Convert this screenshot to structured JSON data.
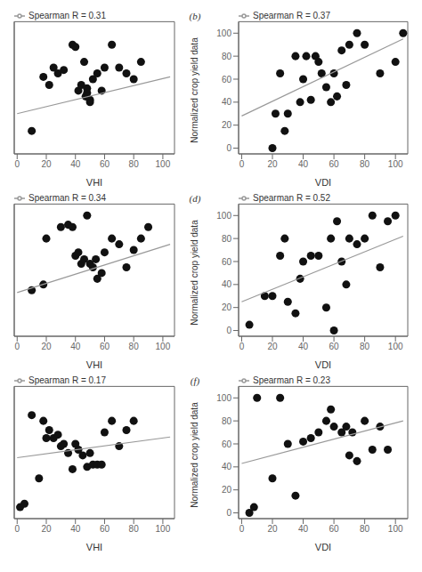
{
  "chart_data": [
    {
      "type": "scatter",
      "xlabel": "VHI",
      "xlim": [
        -2,
        108
      ],
      "ylim": [
        -5,
        110
      ],
      "xticks": [
        0,
        20,
        40,
        60,
        80,
        100
      ],
      "yticks": [
        0,
        20,
        40,
        60,
        80,
        100
      ],
      "grid": false,
      "legend": "upper left",
      "tick_labels": "x",
      "series": [
        {
          "type": "scatter",
          "color": "#111111",
          "marker": "circle",
          "x": [
            10,
            18,
            22,
            25,
            28,
            32,
            38,
            40,
            42,
            44,
            46,
            47,
            48,
            48,
            50,
            50,
            52,
            55,
            58,
            60,
            65,
            70,
            75,
            80,
            85
          ],
          "values": [
            15,
            62,
            55,
            70,
            65,
            68,
            90,
            88,
            50,
            55,
            75,
            45,
            48,
            52,
            40,
            42,
            60,
            65,
            50,
            70,
            90,
            70,
            65,
            60,
            75
          ]
        },
        {
          "name": "Spearman R = 0.31",
          "type": "line",
          "color": "#999999",
          "x": [
            0,
            105
          ],
          "values": [
            30,
            62
          ]
        }
      ]
    },
    {
      "type": "scatter",
      "xlabel": "VDI",
      "ylabel": "Normalized crop yield data",
      "annotations": [
        "(b)"
      ],
      "xlim": [
        -2,
        108
      ],
      "ylim": [
        -5,
        110
      ],
      "xticks": [
        0,
        20,
        40,
        60,
        80,
        100
      ],
      "yticks": [
        0,
        20,
        40,
        60,
        80,
        100
      ],
      "grid": false,
      "legend": "upper left",
      "series": [
        {
          "type": "scatter",
          "color": "#111111",
          "marker": "circle",
          "x": [
            20,
            22,
            25,
            28,
            30,
            35,
            38,
            40,
            42,
            45,
            48,
            50,
            52,
            55,
            58,
            60,
            62,
            65,
            68,
            70,
            75,
            80,
            90,
            100,
            105
          ],
          "values": [
            0,
            30,
            65,
            15,
            30,
            80,
            40,
            60,
            80,
            42,
            80,
            75,
            65,
            53,
            40,
            65,
            45,
            85,
            55,
            90,
            100,
            90,
            65,
            75,
            100
          ]
        },
        {
          "name": "Spearman R = 0.37",
          "type": "line",
          "color": "#999999",
          "x": [
            0,
            105
          ],
          "values": [
            28,
            95
          ]
        }
      ]
    },
    {
      "type": "scatter",
      "xlabel": "VHI",
      "xlim": [
        -2,
        108
      ],
      "ylim": [
        -5,
        110
      ],
      "xticks": [
        0,
        20,
        40,
        60,
        80,
        100
      ],
      "yticks": [
        0,
        20,
        40,
        60,
        80,
        100
      ],
      "grid": false,
      "legend": "upper left",
      "tick_labels": "x",
      "series": [
        {
          "type": "scatter",
          "color": "#111111",
          "marker": "circle",
          "x": [
            10,
            18,
            20,
            30,
            35,
            38,
            40,
            42,
            44,
            46,
            48,
            50,
            52,
            54,
            55,
            58,
            60,
            65,
            70,
            75,
            80,
            85,
            90
          ],
          "values": [
            35,
            40,
            80,
            90,
            92,
            90,
            65,
            68,
            58,
            62,
            100,
            58,
            55,
            62,
            45,
            50,
            68,
            80,
            75,
            55,
            70,
            80,
            90
          ]
        },
        {
          "name": "Spearman R = 0.34",
          "type": "line",
          "color": "#999999",
          "x": [
            0,
            105
          ],
          "values": [
            33,
            75
          ]
        }
      ]
    },
    {
      "type": "scatter",
      "xlabel": "VDI",
      "ylabel": "Normalized crop yield data",
      "annotations": [
        "(d)"
      ],
      "xlim": [
        -2,
        108
      ],
      "ylim": [
        -5,
        110
      ],
      "xticks": [
        0,
        20,
        40,
        60,
        80,
        100
      ],
      "yticks": [
        0,
        20,
        40,
        60,
        80,
        100
      ],
      "grid": false,
      "legend": "upper left",
      "series": [
        {
          "type": "scatter",
          "color": "#111111",
          "marker": "circle",
          "x": [
            5,
            15,
            20,
            25,
            28,
            30,
            35,
            38,
            40,
            45,
            50,
            55,
            58,
            60,
            62,
            65,
            68,
            70,
            75,
            80,
            85,
            90,
            95,
            100
          ],
          "values": [
            5,
            30,
            30,
            65,
            80,
            25,
            15,
            45,
            60,
            65,
            65,
            20,
            80,
            0,
            95,
            60,
            40,
            80,
            75,
            80,
            100,
            55,
            95,
            100
          ]
        },
        {
          "name": "Spearman R = 0.52",
          "type": "line",
          "color": "#999999",
          "x": [
            0,
            105
          ],
          "values": [
            25,
            82
          ]
        }
      ]
    },
    {
      "type": "scatter",
      "xlabel": "VHI",
      "xlim": [
        -2,
        108
      ],
      "ylim": [
        -5,
        110
      ],
      "xticks": [
        0,
        20,
        40,
        60,
        80,
        100
      ],
      "yticks": [
        0,
        20,
        40,
        60,
        80,
        100
      ],
      "grid": false,
      "legend": "upper left",
      "tick_labels": "x",
      "series": [
        {
          "type": "scatter",
          "color": "#111111",
          "marker": "circle",
          "x": [
            2,
            5,
            10,
            15,
            18,
            20,
            22,
            25,
            28,
            30,
            32,
            35,
            38,
            40,
            42,
            45,
            48,
            50,
            52,
            55,
            58,
            60,
            65,
            70,
            75,
            80
          ],
          "values": [
            5,
            8,
            85,
            30,
            80,
            65,
            72,
            65,
            68,
            58,
            60,
            52,
            38,
            60,
            55,
            50,
            40,
            52,
            42,
            42,
            42,
            70,
            80,
            58,
            72,
            80
          ]
        },
        {
          "name": "Spearman R = 0.17",
          "type": "line",
          "color": "#999999",
          "x": [
            0,
            105
          ],
          "values": [
            48,
            66
          ]
        }
      ]
    },
    {
      "type": "scatter",
      "xlabel": "VDI",
      "ylabel": "Normalized crop yield data",
      "annotations": [
        "(f)"
      ],
      "xlim": [
        -2,
        108
      ],
      "ylim": [
        -5,
        110
      ],
      "xticks": [
        0,
        20,
        40,
        60,
        80,
        100
      ],
      "yticks": [
        0,
        20,
        40,
        60,
        80,
        100
      ],
      "grid": false,
      "legend": "upper left",
      "series": [
        {
          "type": "scatter",
          "color": "#111111",
          "marker": "circle",
          "x": [
            5,
            8,
            10,
            20,
            25,
            30,
            35,
            40,
            45,
            50,
            55,
            58,
            60,
            65,
            68,
            70,
            72,
            75,
            80,
            85,
            90,
            95
          ],
          "values": [
            0,
            5,
            100,
            30,
            100,
            60,
            15,
            62,
            65,
            70,
            80,
            90,
            75,
            70,
            75,
            50,
            70,
            45,
            80,
            55,
            75,
            55
          ]
        },
        {
          "name": "Spearman R = 0.23",
          "type": "line",
          "color": "#999999",
          "x": [
            0,
            105
          ],
          "values": [
            43,
            80
          ]
        }
      ]
    }
  ]
}
